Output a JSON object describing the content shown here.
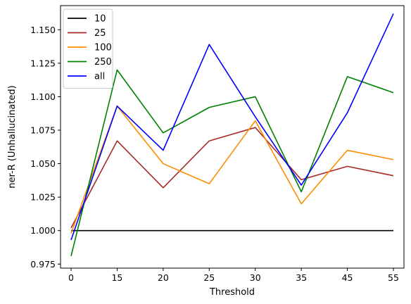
{
  "chart_data": {
    "type": "line",
    "title": "",
    "xlabel": "Threshold",
    "ylabel": "ner-R (Unhallucinated)",
    "categories": [
      "0",
      "15",
      "20",
      "25",
      "30",
      "35",
      "45",
      "55"
    ],
    "ylim": [
      0.972,
      1.168
    ],
    "yticks": [
      "0.975",
      "1.000",
      "1.025",
      "1.050",
      "1.075",
      "1.100",
      "1.125",
      "1.150"
    ],
    "grid": false,
    "legend_position": "top-left",
    "series": [
      {
        "name": "10",
        "color": "#000000",
        "values": [
          1.0,
          1.0,
          1.0,
          1.0,
          1.0,
          1.0,
          1.0,
          1.0
        ]
      },
      {
        "name": "25",
        "color": "#a52a2a",
        "values": [
          1.002,
          1.067,
          1.032,
          1.067,
          1.077,
          1.038,
          1.048,
          1.041
        ]
      },
      {
        "name": "100",
        "color": "#ff8c00",
        "values": [
          0.998,
          1.093,
          1.05,
          1.035,
          1.082,
          1.02,
          1.06,
          1.053
        ]
      },
      {
        "name": "250",
        "color": "#008000",
        "values": [
          0.981,
          1.12,
          1.073,
          1.092,
          1.1,
          1.029,
          1.115,
          1.103
        ]
      },
      {
        "name": "all",
        "color": "#0000ff",
        "values": [
          0.993,
          1.093,
          1.06,
          1.139,
          1.085,
          1.034,
          1.088,
          1.162
        ]
      }
    ]
  }
}
